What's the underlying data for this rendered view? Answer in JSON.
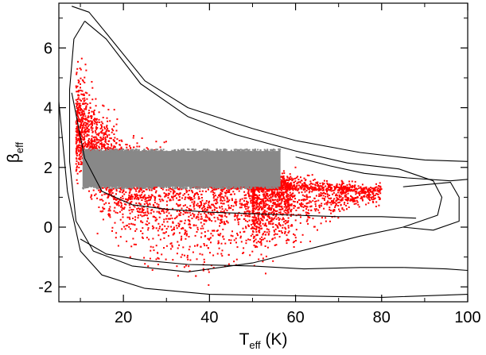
{
  "chart_data": {
    "type": "scatter",
    "xlabel": {
      "main": "T",
      "sub": "eff",
      "unit": " (K)"
    },
    "ylabel": {
      "main": "β",
      "sub": "eff"
    },
    "xlim": [
      5,
      100
    ],
    "ylim": [
      -2.5,
      7.5
    ],
    "x_ticks": [
      20,
      40,
      60,
      80,
      100
    ],
    "x_tick_labels": [
      "20",
      "40",
      "60",
      "80",
      "100"
    ],
    "y_ticks": [
      -2,
      0,
      2,
      4,
      6
    ],
    "y_tick_labels": [
      "-2",
      "0",
      "2",
      "4",
      "6"
    ],
    "grid": false,
    "legend": "none",
    "colors": {
      "scatter": "#ff0000",
      "block": "#888888",
      "contour": "#000000"
    },
    "series": [
      {
        "type": "scatter-cloud",
        "color": "#ff0000",
        "spine": [
          [
            10,
            3.3
          ],
          [
            14,
            2.4
          ],
          [
            20,
            1.75
          ],
          [
            30,
            1.45
          ],
          [
            40,
            1.3
          ],
          [
            50,
            1.25
          ],
          [
            60,
            1.25
          ],
          [
            70,
            1.2
          ],
          [
            78,
            1.2
          ]
        ],
        "spread_upper_at_x": [
          [
            8,
            2.8
          ],
          [
            12,
            2.2
          ],
          [
            20,
            1.4
          ],
          [
            40,
            0.9
          ],
          [
            60,
            0.6
          ],
          [
            75,
            0.3
          ]
        ],
        "spread_lower_at_x": [
          [
            8,
            1.6
          ],
          [
            12,
            2.0
          ],
          [
            20,
            2.5
          ],
          [
            40,
            3.1
          ],
          [
            60,
            2.0
          ],
          [
            75,
            0.5
          ]
        ]
      },
      {
        "type": "dense-block",
        "color": "#888888",
        "x_range": [
          10.5,
          56.5
        ],
        "y_range": [
          1.35,
          2.55
        ]
      }
    ],
    "contours": [
      {
        "name": "outer",
        "path": [
          [
            5,
            4.2
          ],
          [
            7,
            1.2
          ],
          [
            10,
            -0.8
          ],
          [
            15,
            -1.6
          ],
          [
            25,
            -2.05
          ],
          [
            40,
            -2.25
          ],
          [
            60,
            -2.3
          ],
          [
            80,
            -2.35
          ],
          [
            100,
            -2.25
          ]
        ]
      },
      {
        "name": "outer-upper",
        "path": [
          [
            8,
            7.4
          ],
          [
            12,
            7.2
          ],
          [
            16,
            6.5
          ],
          [
            25,
            4.9
          ],
          [
            35,
            4.0
          ],
          [
            50,
            3.3
          ],
          [
            60,
            2.9
          ],
          [
            75,
            2.5
          ],
          [
            90,
            2.25
          ],
          [
            100,
            2.2
          ]
        ]
      },
      {
        "name": "inner",
        "path": [
          [
            11,
            6.9
          ],
          [
            16,
            6.3
          ],
          [
            24,
            4.8
          ],
          [
            35,
            3.7
          ],
          [
            46,
            3.1
          ],
          [
            60,
            2.55
          ],
          [
            72,
            2.15
          ],
          [
            84,
            1.95
          ],
          [
            92,
            1.55
          ],
          [
            94,
            1.0
          ],
          [
            93,
            0.4
          ],
          [
            85,
            0.0
          ],
          [
            75,
            -0.3
          ],
          [
            64,
            -0.7
          ],
          [
            50,
            -1.2
          ],
          [
            35,
            -1.5
          ],
          [
            22,
            -1.3
          ],
          [
            13,
            -0.8
          ],
          [
            9,
            0.2
          ],
          [
            7.5,
            2.2
          ],
          [
            7.5,
            4.6
          ],
          [
            8.5,
            6.3
          ],
          [
            11,
            6.9
          ]
        ]
      },
      {
        "name": "spine",
        "path": [
          [
            8,
            4.5
          ],
          [
            11,
            2.3
          ],
          [
            15,
            1.2
          ],
          [
            22,
            0.75
          ],
          [
            30,
            0.6
          ],
          [
            40,
            0.5
          ],
          [
            50,
            0.45
          ],
          [
            60,
            0.4
          ],
          [
            70,
            0.35
          ],
          [
            80,
            0.35
          ],
          [
            88,
            0.3
          ]
        ]
      },
      {
        "name": "top-right",
        "path": [
          [
            60,
            2.35
          ],
          [
            68,
            2.05
          ],
          [
            76,
            1.8
          ],
          [
            86,
            1.65
          ],
          [
            96,
            1.55
          ],
          [
            100,
            1.6
          ]
        ]
      },
      {
        "name": "right-cap",
        "path": [
          [
            85,
            1.35
          ],
          [
            96,
            1.5
          ],
          [
            98,
            1.0
          ],
          [
            98,
            0.2
          ],
          [
            92,
            -0.1
          ],
          [
            85,
            0.0
          ]
        ]
      },
      {
        "name": "bottom",
        "path": [
          [
            10,
            -0.4
          ],
          [
            16,
            -0.9
          ],
          [
            24,
            -1.1
          ],
          [
            35,
            -1.25
          ],
          [
            50,
            -1.3
          ],
          [
            62,
            -1.4
          ],
          [
            75,
            -1.35
          ],
          [
            85,
            -1.35
          ],
          [
            95,
            -1.4
          ],
          [
            100,
            -1.45
          ]
        ]
      }
    ]
  }
}
